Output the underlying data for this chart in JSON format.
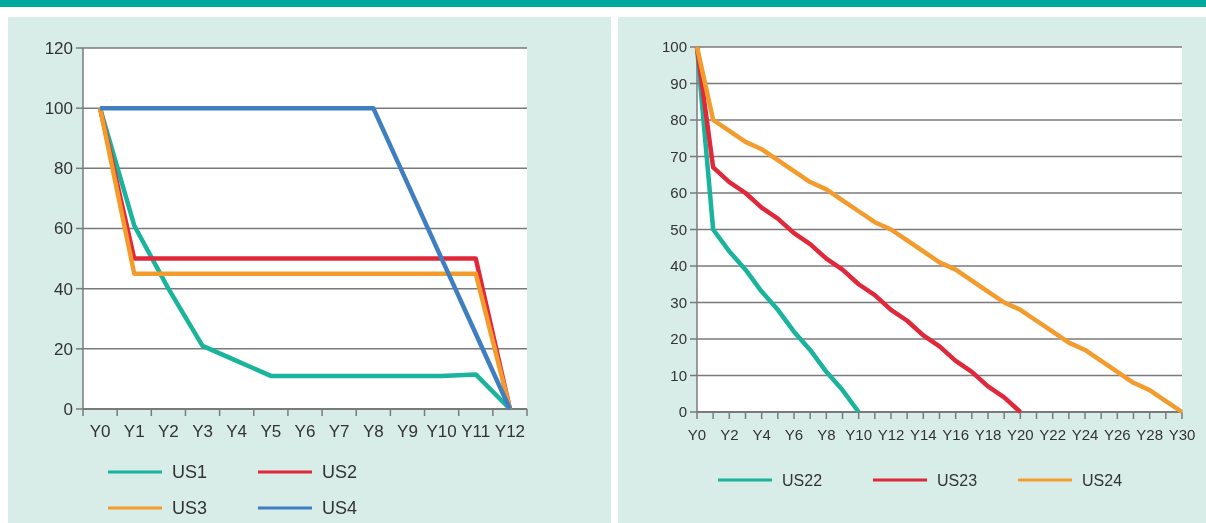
{
  "chart_data": [
    {
      "type": "line",
      "categories": [
        "Y0",
        "Y1",
        "Y2",
        "Y3",
        "Y4",
        "Y5",
        "Y6",
        "Y7",
        "Y8",
        "Y9",
        "Y10",
        "Y11",
        "Y12"
      ],
      "ylim": [
        0,
        120
      ],
      "yticks": [
        0,
        20,
        40,
        60,
        80,
        100,
        120
      ],
      "grid": "y",
      "legend": "bottom",
      "series": [
        {
          "name": "US1",
          "color": "#1ab39b",
          "values": [
            100,
            61,
            40,
            21,
            16,
            11,
            11,
            11,
            11,
            11,
            11,
            11.5,
            0
          ]
        },
        {
          "name": "US2",
          "color": "#e0283a",
          "values": [
            100,
            50,
            50,
            50,
            50,
            50,
            50,
            50,
            50,
            50,
            50,
            50,
            0
          ]
        },
        {
          "name": "US3",
          "color": "#f39c2d",
          "values": [
            100,
            45,
            45,
            45,
            45,
            45,
            45,
            45,
            45,
            45,
            45,
            45,
            0
          ]
        },
        {
          "name": "US4",
          "color": "#3f7fc1",
          "values": [
            100,
            100,
            100,
            100,
            100,
            100,
            100,
            100,
            100,
            75,
            50,
            25,
            0
          ]
        }
      ]
    },
    {
      "type": "line",
      "categories": [
        "Y0",
        null,
        "Y2",
        null,
        "Y4",
        null,
        "Y6",
        null,
        "Y8",
        null,
        "Y10",
        null,
        "Y12",
        null,
        "Y14",
        null,
        "Y16",
        null,
        "Y18",
        null,
        "Y20",
        null,
        "Y22",
        null,
        "Y24",
        null,
        "Y26",
        null,
        "Y28",
        null,
        "Y30"
      ],
      "ylim": [
        0,
        100
      ],
      "yticks": [
        0,
        10,
        20,
        30,
        40,
        50,
        60,
        70,
        80,
        90,
        100
      ],
      "grid": "y",
      "legend": "bottom",
      "series": [
        {
          "name": "US22",
          "color": "#1ab39b",
          "values": [
            100,
            50,
            44,
            39,
            33,
            28,
            22,
            17,
            11,
            6,
            0,
            null,
            null,
            null,
            null,
            null,
            null,
            null,
            null,
            null,
            null,
            null,
            null,
            null,
            null,
            null,
            null,
            null,
            null,
            null,
            null
          ]
        },
        {
          "name": "US23",
          "color": "#e0283a",
          "values": [
            100,
            67,
            63,
            60,
            56,
            53,
            49,
            46,
            42,
            39,
            35,
            32,
            28,
            25,
            21,
            18,
            14,
            11,
            7,
            4,
            0,
            null,
            null,
            null,
            null,
            null,
            null,
            null,
            null,
            null,
            null
          ]
        },
        {
          "name": "US24",
          "color": "#f39c2d",
          "values": [
            100,
            80,
            77,
            74,
            72,
            69,
            66,
            63,
            61,
            58,
            55,
            52,
            50,
            47,
            44,
            41,
            39,
            36,
            33,
            30,
            28,
            25,
            22,
            19,
            17,
            14,
            11,
            8,
            6,
            3,
            0
          ]
        }
      ]
    }
  ]
}
